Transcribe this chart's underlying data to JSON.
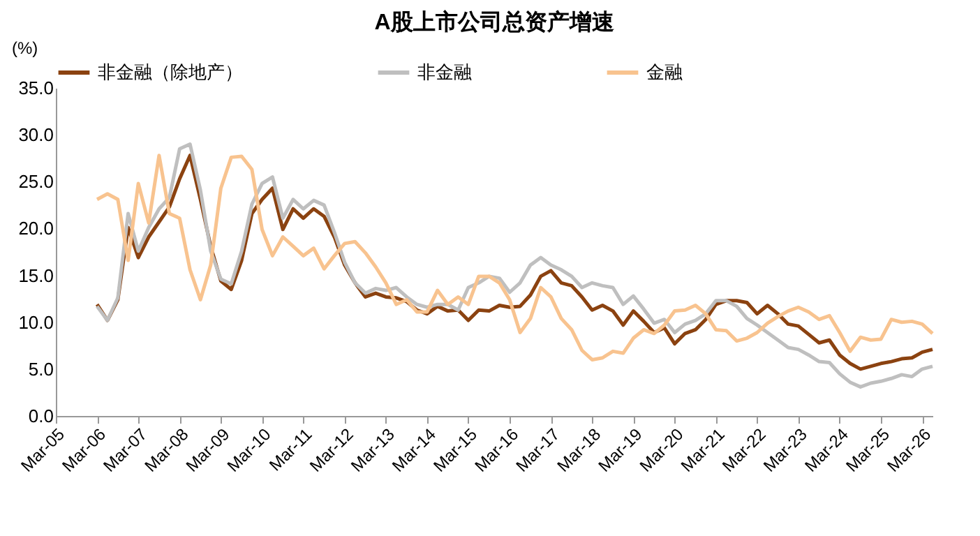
{
  "chart_data": {
    "type": "line",
    "title": "A股上市公司总资产增速",
    "ylabel": "(%)",
    "x": [
      "2006-03",
      "2006-06",
      "2006-09",
      "2006-12",
      "2007-03",
      "2007-06",
      "2007-09",
      "2007-12",
      "2008-03",
      "2008-06",
      "2008-09",
      "2008-12",
      "2009-03",
      "2009-06",
      "2009-09",
      "2009-12",
      "2010-03",
      "2010-06",
      "2010-09",
      "2010-12",
      "2011-03",
      "2011-06",
      "2011-09",
      "2011-12",
      "2012-03",
      "2012-06",
      "2012-09",
      "2012-12",
      "2013-03",
      "2013-06",
      "2013-09",
      "2013-12",
      "2014-03",
      "2014-06",
      "2014-09",
      "2014-12",
      "2015-03",
      "2015-06",
      "2015-09",
      "2015-12",
      "2016-03",
      "2016-06",
      "2016-09",
      "2016-12",
      "2017-03",
      "2017-06",
      "2017-09",
      "2017-12",
      "2018-03",
      "2018-06",
      "2018-09",
      "2018-12",
      "2019-03",
      "2019-06",
      "2019-09",
      "2019-12",
      "2020-03",
      "2020-06",
      "2020-09",
      "2020-12",
      "2021-03",
      "2021-06",
      "2021-09",
      "2021-12",
      "2022-03",
      "2022-06",
      "2022-09",
      "2022-12",
      "2023-03",
      "2023-06",
      "2023-09",
      "2023-12",
      "2024-03",
      "2024-06",
      "2024-09",
      "2024-12",
      "2025-03",
      "2025-06",
      "2025-09",
      "2025-12",
      "2026-03",
      "2026-06"
    ],
    "series": [
      {
        "name": "非金融（除地产）",
        "color": "#8B4210",
        "values": [
          11.9,
          10.2,
          12.4,
          20.1,
          16.9,
          19.1,
          20.7,
          22.3,
          25.3,
          27.8,
          23.1,
          18.1,
          14.4,
          13.5,
          16.6,
          21.6,
          23.1,
          24.3,
          19.9,
          22.1,
          21.1,
          22.1,
          21.3,
          19.1,
          16.1,
          14.2,
          12.7,
          13.1,
          12.7,
          12.6,
          12.2,
          11.3,
          10.9,
          11.7,
          11.2,
          11.3,
          10.2,
          11.3,
          11.2,
          11.8,
          11.6,
          11.7,
          12.9,
          14.9,
          15.5,
          14.2,
          13.9,
          12.7,
          11.3,
          11.8,
          11.2,
          9.7,
          11.2,
          10.1,
          8.9,
          9.4,
          7.7,
          8.8,
          9.2,
          10.3,
          11.9,
          12.3,
          12.3,
          12.1,
          10.9,
          11.8,
          10.9,
          9.8,
          9.6,
          8.7,
          7.8,
          8.1,
          6.5,
          5.6,
          5.0,
          5.3,
          5.6,
          5.8,
          6.1,
          6.2,
          6.8,
          7.1
        ]
      },
      {
        "name": "非金融",
        "color": "#BFBFBF",
        "values": [
          11.7,
          10.2,
          12.6,
          21.6,
          17.6,
          20.1,
          22.1,
          23.3,
          28.5,
          29.0,
          24.1,
          17.6,
          14.6,
          14.1,
          17.6,
          22.6,
          24.8,
          25.5,
          21.1,
          23.1,
          22.1,
          23.0,
          22.5,
          19.6,
          16.4,
          14.2,
          13.1,
          13.6,
          13.4,
          13.7,
          12.7,
          11.9,
          11.6,
          11.9,
          11.9,
          11.3,
          13.7,
          14.2,
          14.9,
          14.7,
          13.2,
          14.2,
          16.1,
          16.9,
          16.1,
          15.6,
          14.9,
          13.7,
          14.2,
          13.9,
          13.7,
          11.9,
          12.8,
          11.4,
          9.9,
          10.3,
          8.9,
          9.8,
          10.2,
          10.9,
          12.3,
          12.3,
          11.7,
          10.4,
          9.7,
          8.9,
          8.1,
          7.3,
          7.1,
          6.5,
          5.8,
          5.7,
          4.5,
          3.6,
          3.1,
          3.5,
          3.7,
          4.0,
          4.4,
          4.2,
          5.0,
          5.3
        ]
      },
      {
        "name": "金融",
        "color": "#F8C38F",
        "values": [
          23.1,
          23.7,
          23.1,
          16.6,
          24.8,
          20.6,
          27.8,
          21.6,
          21.1,
          15.6,
          12.4,
          16.1,
          24.3,
          27.6,
          27.7,
          26.3,
          19.9,
          17.1,
          19.1,
          18.1,
          17.1,
          17.9,
          15.7,
          17.1,
          18.4,
          18.6,
          17.4,
          15.9,
          14.2,
          11.9,
          12.4,
          11.1,
          11.1,
          13.4,
          11.9,
          12.7,
          11.9,
          14.9,
          14.9,
          14.2,
          12.4,
          8.9,
          10.4,
          13.7,
          12.7,
          10.4,
          9.2,
          7.0,
          6.0,
          6.2,
          6.9,
          6.7,
          8.3,
          9.2,
          8.8,
          9.7,
          11.2,
          11.3,
          11.8,
          10.9,
          9.2,
          9.1,
          8.0,
          8.3,
          8.9,
          9.9,
          10.6,
          11.2,
          11.6,
          11.1,
          10.3,
          10.7,
          8.9,
          6.9,
          8.4,
          8.1,
          8.2,
          10.3,
          10.0,
          10.1,
          9.8,
          8.8
        ]
      }
    ],
    "xlim": [
      "2005-03",
      "2026-06"
    ],
    "xticks": [
      {
        "value": "2005-03",
        "label": "Mar-05"
      },
      {
        "value": "2006-03",
        "label": "Mar-06"
      },
      {
        "value": "2007-03",
        "label": "Mar-07"
      },
      {
        "value": "2008-03",
        "label": "Mar-08"
      },
      {
        "value": "2009-03",
        "label": "Mar-09"
      },
      {
        "value": "2010-03",
        "label": "Mar-10"
      },
      {
        "value": "2011-03",
        "label": "Mar-11"
      },
      {
        "value": "2012-03",
        "label": "Mar-12"
      },
      {
        "value": "2013-03",
        "label": "Mar-13"
      },
      {
        "value": "2014-03",
        "label": "Mar-14"
      },
      {
        "value": "2015-03",
        "label": "Mar-15"
      },
      {
        "value": "2016-03",
        "label": "Mar-16"
      },
      {
        "value": "2017-03",
        "label": "Mar-17"
      },
      {
        "value": "2018-03",
        "label": "Mar-18"
      },
      {
        "value": "2019-03",
        "label": "Mar-19"
      },
      {
        "value": "2020-03",
        "label": "Mar-20"
      },
      {
        "value": "2021-03",
        "label": "Mar-21"
      },
      {
        "value": "2022-03",
        "label": "Mar-22"
      },
      {
        "value": "2023-03",
        "label": "Mar-23"
      },
      {
        "value": "2024-03",
        "label": "Mar-24"
      },
      {
        "value": "2025-03",
        "label": "Mar-25"
      },
      {
        "value": "2026-03",
        "label": "Mar-26"
      }
    ],
    "ylim": [
      0,
      35
    ],
    "yticks": [
      {
        "value": 0,
        "label": "0.0"
      },
      {
        "value": 5,
        "label": "5.0"
      },
      {
        "value": 10,
        "label": "10.0"
      },
      {
        "value": 15,
        "label": "15.0"
      },
      {
        "value": 20,
        "label": "20.0"
      },
      {
        "value": 25,
        "label": "25.0"
      },
      {
        "value": 30,
        "label": "30.0"
      },
      {
        "value": 35,
        "label": "35.0"
      }
    ],
    "grid": false,
    "legend": "top",
    "marker": "none",
    "line_style": "solid"
  }
}
